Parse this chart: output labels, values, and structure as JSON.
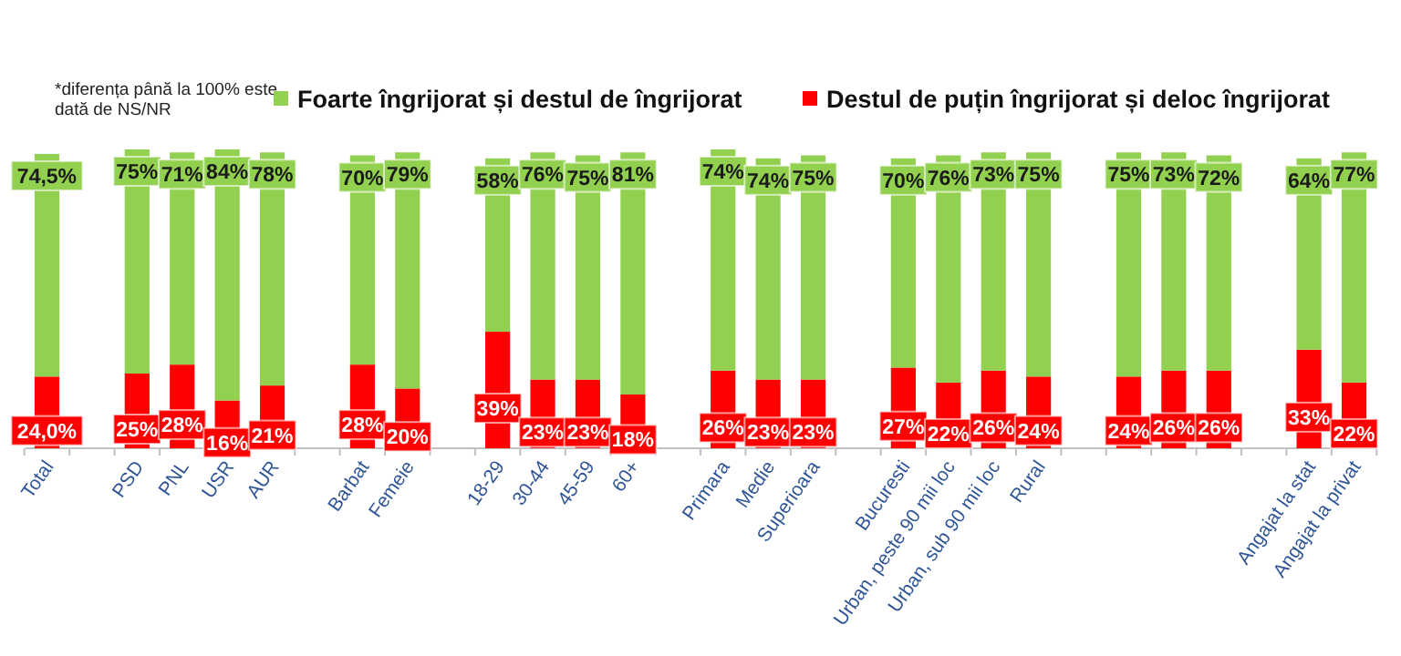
{
  "chart_data": {
    "type": "bar",
    "stacked": true,
    "legend": "top",
    "annotations": [
      "*diferența până la 100% este dată de NS/NR"
    ],
    "categories": [
      "Total",
      null,
      "PSD",
      "PNL",
      "USR",
      "AUR",
      null,
      "Barbat",
      "Femeie",
      null,
      "18-29",
      "30-44",
      "45-59",
      "60+",
      null,
      "Primara",
      "Medie",
      "Superioara",
      null,
      "Bucuresti",
      "Urban, peste 90 mii loc",
      "Urban, sub 90 mii loc",
      "Rural",
      null,
      null,
      null,
      null,
      null,
      "Angajat la stat",
      "Angajat la privat"
    ],
    "series": [
      {
        "name": "Destul de puțin îngrijorat și deloc îngrijorat",
        "color": "#ff0000",
        "values": [
          24.0,
          null,
          25,
          28,
          16,
          21,
          null,
          28,
          20,
          null,
          39,
          23,
          23,
          18,
          null,
          26,
          23,
          23,
          null,
          27,
          22,
          26,
          24,
          null,
          24,
          26,
          26,
          null,
          33,
          22
        ],
        "value_labels": [
          "24,0%",
          null,
          "25%",
          "28%",
          "16%",
          "21%",
          null,
          "28%",
          "20%",
          null,
          "39%",
          "23%",
          "23%",
          "18%",
          null,
          "26%",
          "23%",
          "23%",
          null,
          "27%",
          "22%",
          "26%",
          "24%",
          null,
          "24%",
          "26%",
          "26%",
          null,
          "33%",
          "22%"
        ]
      },
      {
        "name": "Foarte îngrijorat și destul de îngrijorat",
        "color": "#92d050",
        "values": [
          74.5,
          null,
          75,
          71,
          84,
          78,
          null,
          70,
          79,
          null,
          58,
          76,
          75,
          81,
          null,
          74,
          74,
          75,
          null,
          70,
          76,
          73,
          75,
          null,
          75,
          73,
          72,
          null,
          64,
          77
        ],
        "value_labels": [
          "74,5%",
          null,
          "75%",
          "71%",
          "84%",
          "78%",
          null,
          "70%",
          "79%",
          null,
          "58%",
          "76%",
          "75%",
          "81%",
          null,
          "74%",
          "74%",
          "75%",
          null,
          "70%",
          "76%",
          "73%",
          "75%",
          null,
          "75%",
          "73%",
          "72%",
          null,
          "64%",
          "77%"
        ]
      }
    ]
  }
}
